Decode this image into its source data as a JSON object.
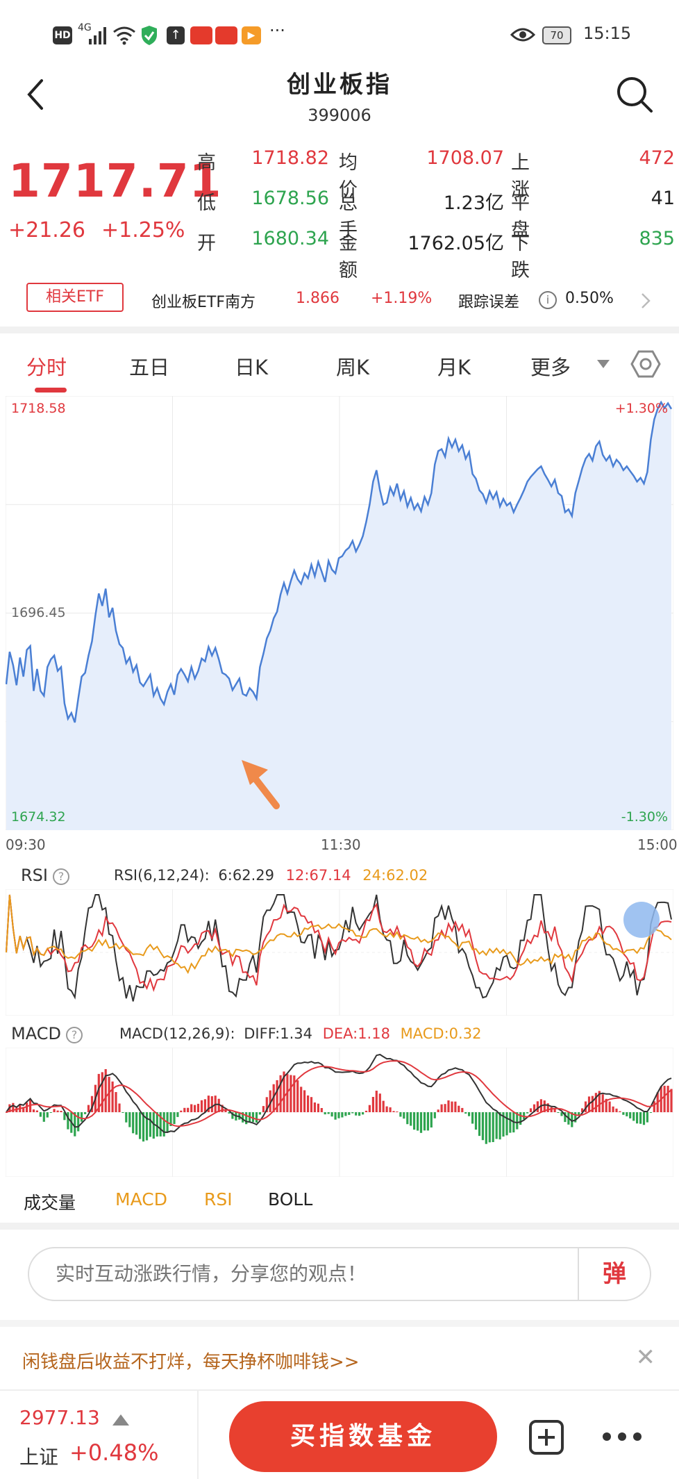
{
  "status_bar": {
    "left_icons": [
      "hd-icon",
      "signal-4g-icon",
      "wifi-icon",
      "shield-icon",
      "upload-icon",
      "app-notif-icon",
      "app-notif-icon",
      "play-icon",
      "more-dots-icon"
    ],
    "hd": "HD",
    "net": "4G",
    "battery": "70",
    "time": "15:15"
  },
  "header": {
    "title": "创业板指",
    "code": "399006"
  },
  "quote": {
    "price": "1717.71",
    "change": "+21.26",
    "pct": "+1.25%",
    "stats": [
      {
        "label": "高",
        "value": "1718.82",
        "tone": "red",
        "label2": "均价",
        "value2": "1708.07",
        "tone2": "red",
        "label3": "上涨",
        "value3": "472",
        "tone3": "red"
      },
      {
        "label": "低",
        "value": "1678.56",
        "tone": "green",
        "label2": "总手",
        "value2": "1.23亿",
        "tone2": "black",
        "label3": "平盘",
        "value3": "41",
        "tone3": "black"
      },
      {
        "label": "开",
        "value": "1680.34",
        "tone": "green",
        "label2": "金额",
        "value2": "1762.05亿",
        "tone2": "black",
        "label3": "下跌",
        "value3": "835",
        "tone3": "green"
      }
    ]
  },
  "etf": {
    "tag": "相关ETF",
    "name": "创业板ETF南方",
    "price": "1.866",
    "pct": "+1.19%",
    "track_label": "跟踪误差",
    "track_value": "0.50%"
  },
  "tabs": [
    "分时",
    "五日",
    "日K",
    "周K",
    "月K",
    "更多"
  ],
  "chart_data": {
    "type": "line",
    "title": "",
    "y_max_label": "1718.58",
    "y_mid_label": "1696.45",
    "y_min_label": "1674.32",
    "pct_max_label": "+1.30%",
    "pct_min_label": "-1.30%",
    "ylim": [
      1674.32,
      1718.58
    ],
    "time_labels": [
      "09:30",
      "11:30",
      "15:00"
    ],
    "series": [
      {
        "values": [
          1689.0,
          1692.4,
          1691.0,
          1688.9,
          1691.8,
          1689.8,
          1692.6,
          1693.0,
          1688.3,
          1690.6,
          1688.3,
          1687.8,
          1690.8,
          1691.6,
          1692.0,
          1690.4,
          1690.8,
          1687.0,
          1685.4,
          1686.0,
          1685.0,
          1687.5,
          1689.8,
          1690.2,
          1692.0,
          1693.5,
          1696.2,
          1698.5,
          1697.2,
          1699.0,
          1696.0,
          1697.0,
          1694.6,
          1693.2,
          1692.8,
          1691.2,
          1691.8,
          1690.3,
          1691.0,
          1689.2,
          1688.8,
          1689.4,
          1690.0,
          1687.8,
          1688.6,
          1687.5,
          1686.9,
          1688.2,
          1689.0,
          1687.9,
          1690.0,
          1690.6,
          1690.0,
          1689.3,
          1690.8,
          1689.6,
          1690.4,
          1691.7,
          1691.4,
          1692.9,
          1692.0,
          1692.8,
          1691.6,
          1690.2,
          1690.0,
          1689.6,
          1688.4,
          1689.0,
          1689.6,
          1688.0,
          1687.8,
          1688.6,
          1688.2,
          1687.5,
          1690.8,
          1692.2,
          1693.8,
          1694.6,
          1695.9,
          1696.6,
          1698.4,
          1699.6,
          1698.5,
          1699.8,
          1700.9,
          1700.0,
          1699.5,
          1700.6,
          1700.1,
          1701.5,
          1700.3,
          1701.8,
          1700.8,
          1699.7,
          1701.9,
          1701.0,
          1700.6,
          1702.2,
          1702.4,
          1703.0,
          1703.3,
          1704.0,
          1702.9,
          1703.6,
          1704.5,
          1706.0,
          1707.8,
          1710.2,
          1711.4,
          1709.3,
          1707.8,
          1708.0,
          1709.6,
          1708.8,
          1710.0,
          1708.3,
          1709.2,
          1707.6,
          1708.5,
          1707.3,
          1707.9,
          1707.1,
          1708.6,
          1707.8,
          1709.0,
          1712.0,
          1713.4,
          1713.6,
          1712.8,
          1714.7,
          1713.8,
          1714.6,
          1713.4,
          1714.0,
          1712.6,
          1713.3,
          1711.0,
          1710.5,
          1709.3,
          1708.9,
          1708.0,
          1709.2,
          1708.4,
          1709.1,
          1707.6,
          1708.4,
          1707.7,
          1708.0,
          1707.0,
          1707.8,
          1708.5,
          1709.3,
          1710.2,
          1710.7,
          1711.1,
          1711.5,
          1711.8,
          1711.0,
          1710.4,
          1709.7,
          1710.4,
          1709.0,
          1708.7,
          1707.0,
          1707.3,
          1706.6,
          1709.0,
          1710.3,
          1711.6,
          1712.6,
          1713.1,
          1712.4,
          1713.9,
          1714.4,
          1713.0,
          1712.4,
          1712.9,
          1711.8,
          1712.5,
          1712.1,
          1711.4,
          1711.8,
          1711.3,
          1710.8,
          1710.2,
          1710.6,
          1710.0,
          1711.2,
          1714.6,
          1716.7,
          1717.8,
          1718.5,
          1717.9,
          1718.4,
          1717.8
        ]
      }
    ]
  },
  "rsi": {
    "name": "RSI",
    "params": "RSI(6,12,24):",
    "rsi6": "6:62.29",
    "rsi12": "12:67.14",
    "rsi24": "24:62.02"
  },
  "macd": {
    "name": "MACD",
    "params": "MACD(12,26,9):",
    "diff": "DIFF:1.34",
    "dea": "DEA:1.18",
    "macd": "MACD:0.32"
  },
  "indicator_tabs": [
    "成交量",
    "MACD",
    "RSI",
    "BOLL"
  ],
  "comment": {
    "placeholder": "实时互动涨跌行情，分享您的观点！",
    "danmu": "弹"
  },
  "promo": {
    "text": "闲钱盘后收益不打烊，每天挣杯咖啡钱>>"
  },
  "bottom": {
    "sh_value": "2977.13",
    "sh_name": "上证",
    "sh_pct": "+0.48%",
    "buy_label": "买指数基金"
  },
  "colors": {
    "up": "#e0383e",
    "down": "#2ea44f",
    "line": "#4a7fd4",
    "accent": "#e8402f"
  }
}
